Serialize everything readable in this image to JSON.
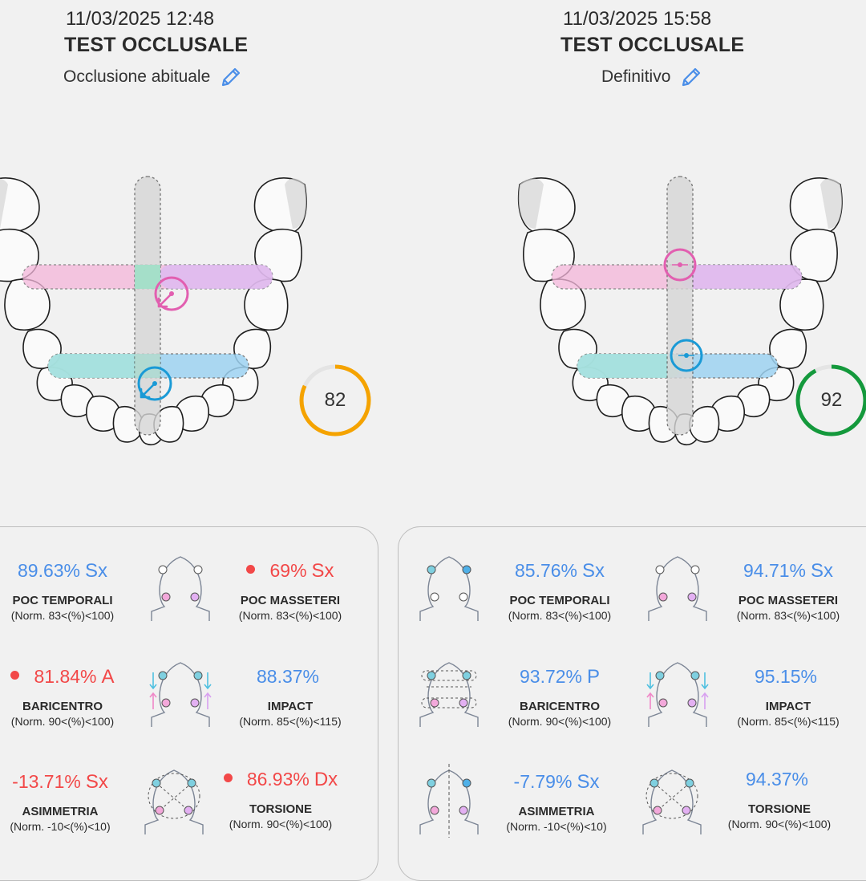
{
  "tests": [
    {
      "timestamp": "11/03/2025 12:48",
      "title": "TEST OCCLUSALE",
      "subtitle": "Occlusione abituale",
      "score": 82,
      "score_color": "#f5a300",
      "metrics": {
        "poc_temporali": {
          "value": "89.63",
          "unit": "%",
          "side": "Sx",
          "label": "POC TEMPORALI",
          "norm": "(Norm. 83<(%)<100)",
          "status": "ok"
        },
        "poc_masseteri": {
          "value": "69",
          "unit": "%",
          "side": "Sx",
          "label": "POC MASSETERI",
          "norm": "(Norm. 83<(%)<100)",
          "status": "alert"
        },
        "baricentro": {
          "value": "81.84",
          "unit": "%",
          "side": "A",
          "label": "BARICENTRO",
          "norm": "(Norm. 90<(%)<100)",
          "status": "alert"
        },
        "impact": {
          "value": "88.37",
          "unit": "%",
          "side": "",
          "label": "IMPACT",
          "norm": "(Norm. 85<(%)<115)",
          "status": "ok"
        },
        "asimmetria": {
          "value": "-13.71",
          "unit": "%",
          "side": "Sx",
          "label": "ASIMMETRIA",
          "norm": "(Norm. -10<(%)<10)",
          "status": "alert"
        },
        "torsione": {
          "value": "86.93",
          "unit": "%",
          "side": "Dx",
          "label": "TORSIONE",
          "norm": "(Norm. 90<(%)<100)",
          "status": "alert"
        }
      }
    },
    {
      "timestamp": "11/03/2025 15:58",
      "title": "TEST OCCLUSALE",
      "subtitle": "Definitivo",
      "score": 92,
      "score_color": "#14993c",
      "metrics": {
        "poc_temporali": {
          "value": "85.76",
          "unit": "%",
          "side": "Sx",
          "label": "POC TEMPORALI",
          "norm": "(Norm. 83<(%)<100)",
          "status": "ok"
        },
        "poc_masseteri": {
          "value": "94.71",
          "unit": "%",
          "side": "Sx",
          "label": "POC MASSETERI",
          "norm": "(Norm. 83<(%)<100)",
          "status": "ok"
        },
        "baricentro": {
          "value": "93.72",
          "unit": "%",
          "side": "P",
          "label": "BARICENTRO",
          "norm": "(Norm. 90<(%)<100)",
          "status": "ok"
        },
        "impact": {
          "value": "95.15",
          "unit": "%",
          "side": "",
          "label": "IMPACT",
          "norm": "(Norm. 85<(%)<115)",
          "status": "ok"
        },
        "asimmetria": {
          "value": "-7.79",
          "unit": "%",
          "side": "Sx",
          "label": "ASIMMETRIA",
          "norm": "(Norm. -10<(%)<10)",
          "status": "ok"
        },
        "torsione": {
          "value": "94.37",
          "unit": "%",
          "side": "",
          "label": "TORSIONE",
          "norm": "(Norm. 90<(%)<100)",
          "status": "ok"
        }
      }
    }
  ],
  "colors": {
    "ok": "#4a8ee8",
    "alert": "#f24848",
    "pink": "#e25fb0",
    "blue": "#1a9ad6",
    "gauge_track": "#e4e4e4"
  },
  "icons": {
    "edit": "pencil-icon"
  }
}
